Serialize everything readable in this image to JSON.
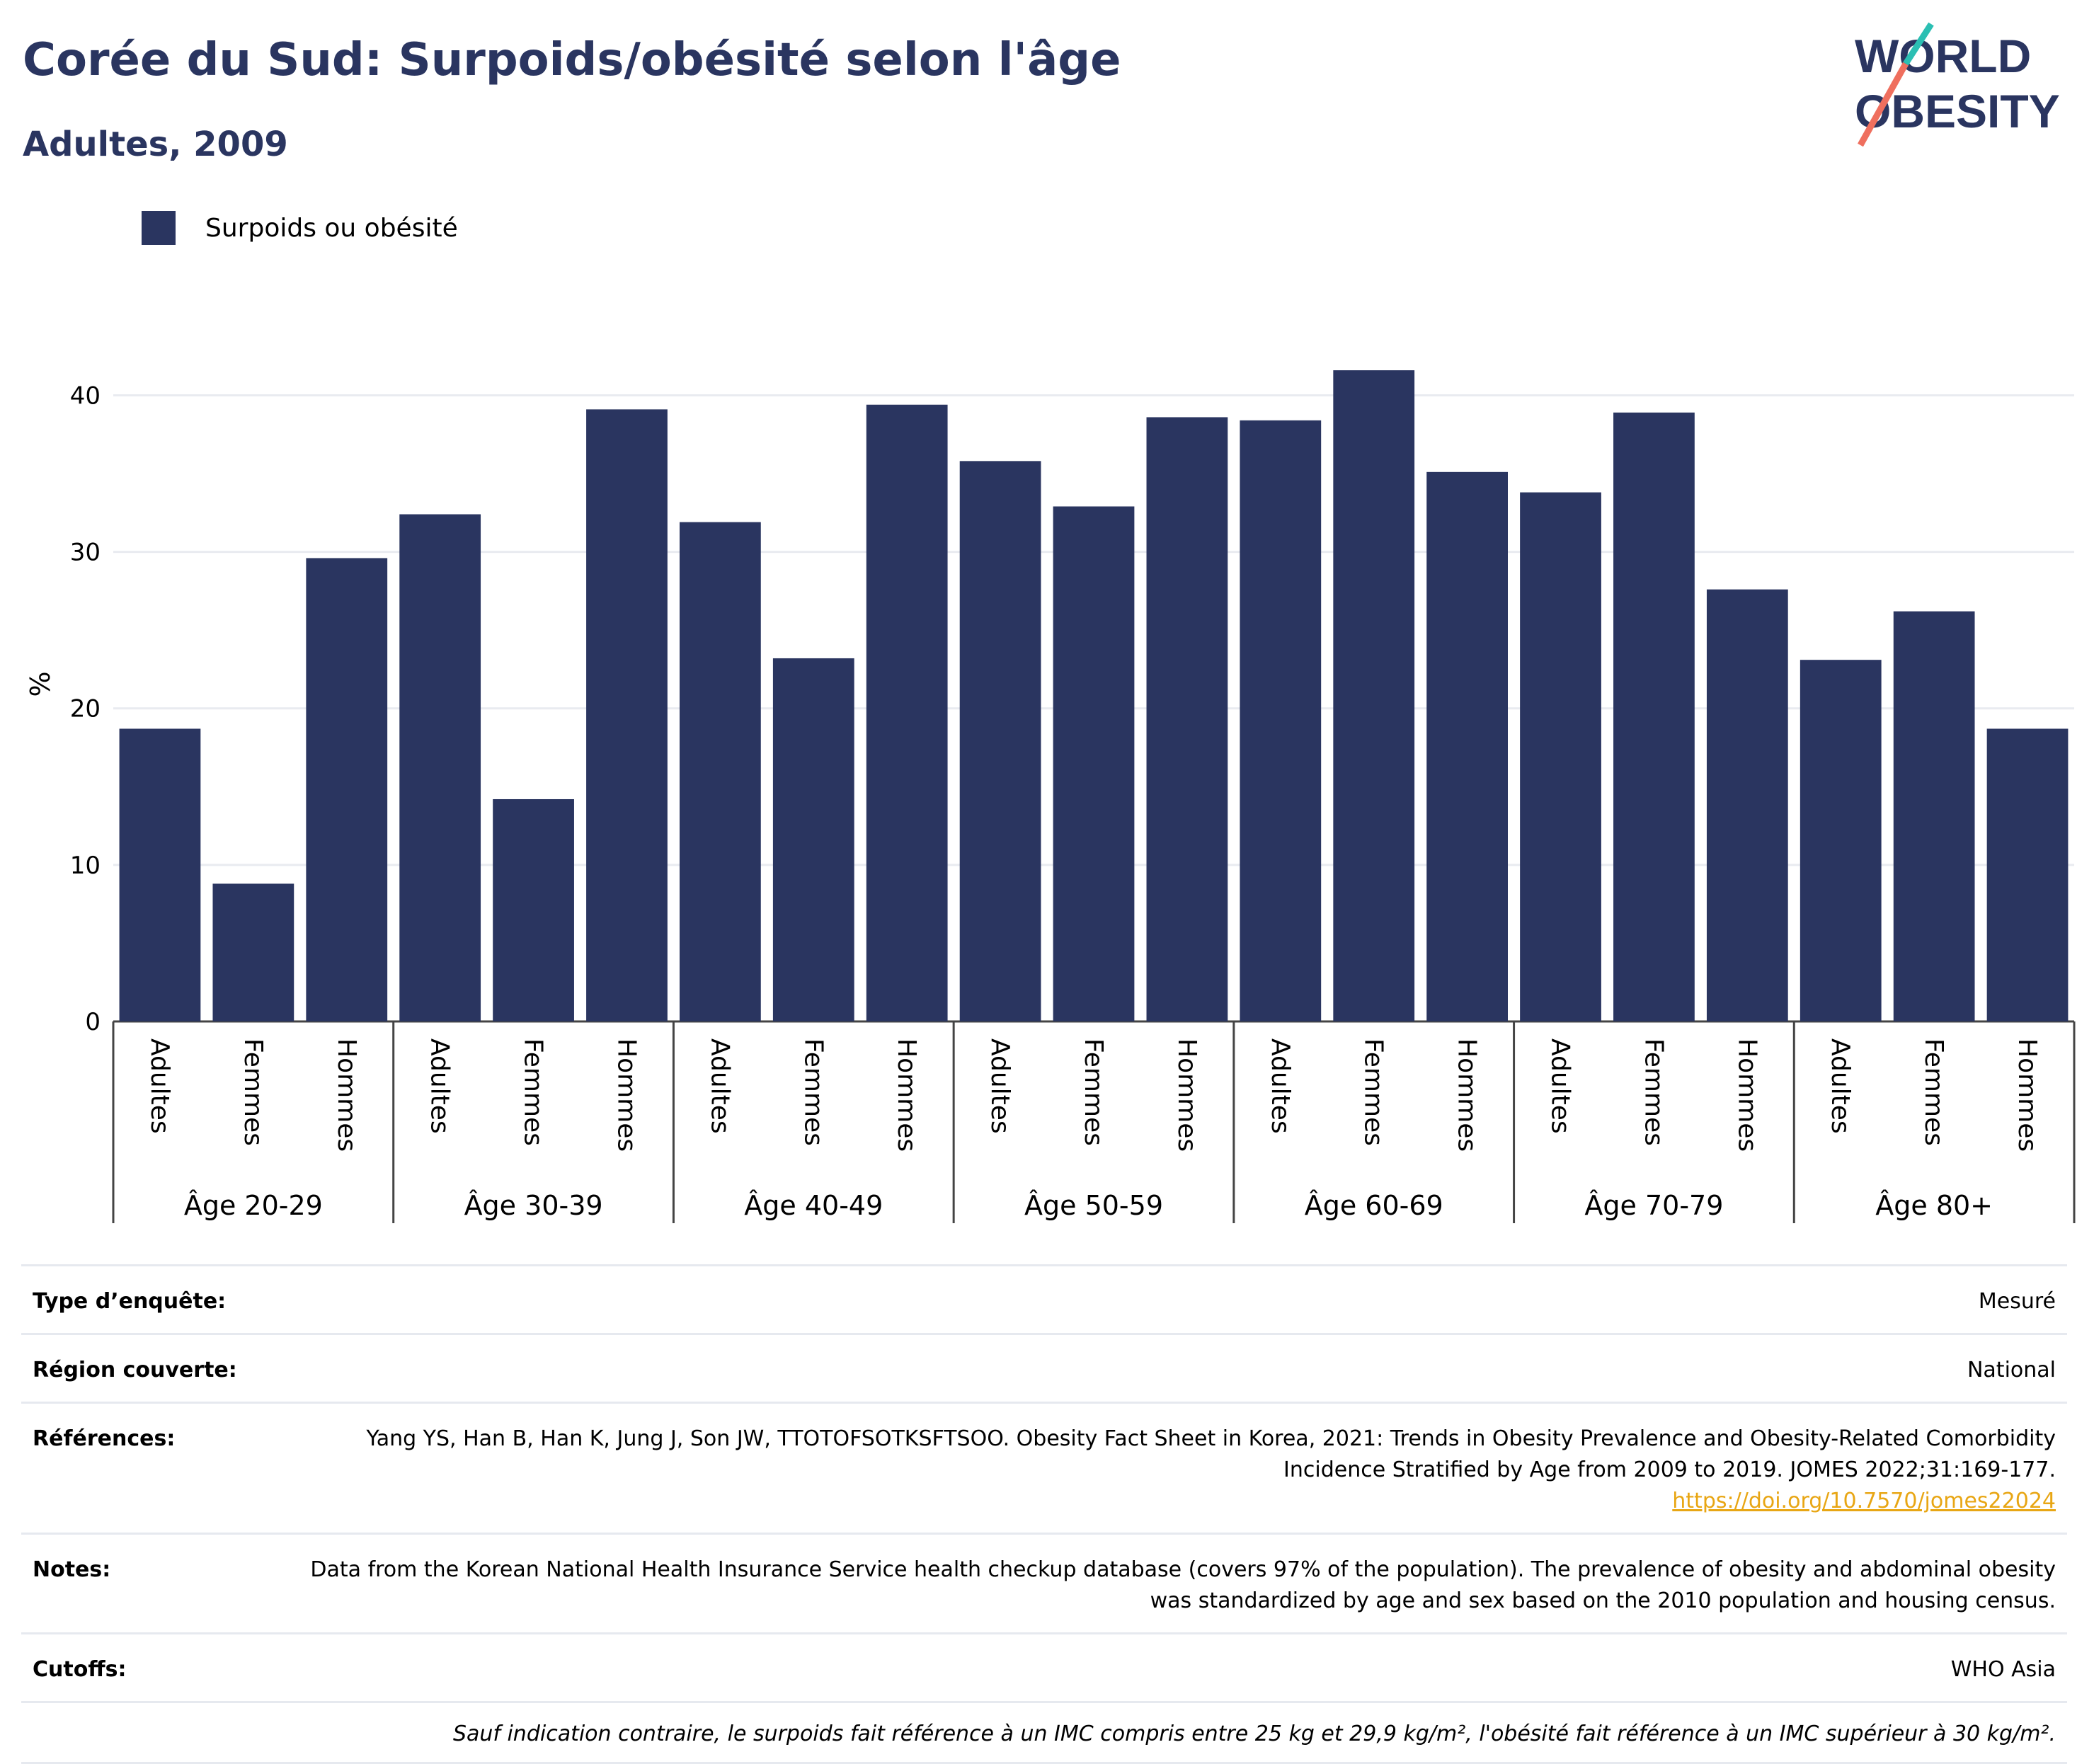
{
  "header": {
    "title": "Corée du Sud: Surpoids/obésité selon l'âge",
    "subtitle": "Adultes, 2009"
  },
  "logo": {
    "line1": "WORLD",
    "line2": "OBESITY"
  },
  "legend": {
    "label": "Surpoids ou obésité"
  },
  "colors": {
    "bar": "#2a3560",
    "title": "#2a3560",
    "link": "#e8a614",
    "logo_teal": "#2bbfb3",
    "logo_coral": "#ef6f5e"
  },
  "chart_data": {
    "type": "bar",
    "ylabel": "%",
    "ylim": [
      0,
      44
    ],
    "yticks": [
      0,
      10,
      20,
      30,
      40
    ],
    "grid": true,
    "legend_position": "top-left",
    "groups": [
      {
        "label": "Âge 20-29",
        "categories": [
          "Adultes",
          "Femmes",
          "Hommes"
        ],
        "values": [
          18.7,
          8.8,
          29.6
        ]
      },
      {
        "label": "Âge 30-39",
        "categories": [
          "Adultes",
          "Femmes",
          "Hommes"
        ],
        "values": [
          32.4,
          14.2,
          39.1
        ]
      },
      {
        "label": "Âge 40-49",
        "categories": [
          "Adultes",
          "Femmes",
          "Hommes"
        ],
        "values": [
          31.9,
          23.2,
          39.4
        ]
      },
      {
        "label": "Âge 50-59",
        "categories": [
          "Adultes",
          "Femmes",
          "Hommes"
        ],
        "values": [
          35.8,
          32.9,
          38.6
        ]
      },
      {
        "label": "Âge 60-69",
        "categories": [
          "Adultes",
          "Femmes",
          "Hommes"
        ],
        "values": [
          38.4,
          41.6,
          35.1
        ]
      },
      {
        "label": "Âge 70-79",
        "categories": [
          "Adultes",
          "Femmes",
          "Hommes"
        ],
        "values": [
          33.8,
          38.9,
          27.6
        ]
      },
      {
        "label": "Âge 80+",
        "categories": [
          "Adultes",
          "Femmes",
          "Hommes"
        ],
        "values": [
          23.1,
          26.2,
          18.7
        ]
      }
    ],
    "series": [
      {
        "name": "Surpoids ou obésité"
      }
    ]
  },
  "info": {
    "rows": [
      {
        "key": "Type d’enquête:",
        "value": "Mesuré"
      },
      {
        "key": "Région couverte:",
        "value": "National"
      },
      {
        "key": "Références:",
        "value": "Yang YS, Han B, Han K, Jung J, Son JW, TTOTOFSOTKSFTSOO. Obesity Fact Sheet in Korea, 2021: Trends in Obesity Prevalence and Obesity-Related Comorbidity Incidence Stratified by Age from 2009 to 2019. JOMES 2022;31:169-177.",
        "link": "https://doi.org/10.7570/jomes22024"
      },
      {
        "key": "Notes:",
        "value": "Data from the Korean National Health Insurance Service health checkup database (covers 97% of the population). The prevalence of obesity and abdominal obesity was standardized by age and sex based on the 2010 population and housing census."
      },
      {
        "key": "Cutoffs:",
        "value": "WHO Asia"
      }
    ],
    "footnote": "Sauf indication contraire, le surpoids fait référence à un IMC compris entre 25 kg et 29,9 kg/m², l'obésité fait référence à un IMC supérieur à 30 kg/m²."
  }
}
